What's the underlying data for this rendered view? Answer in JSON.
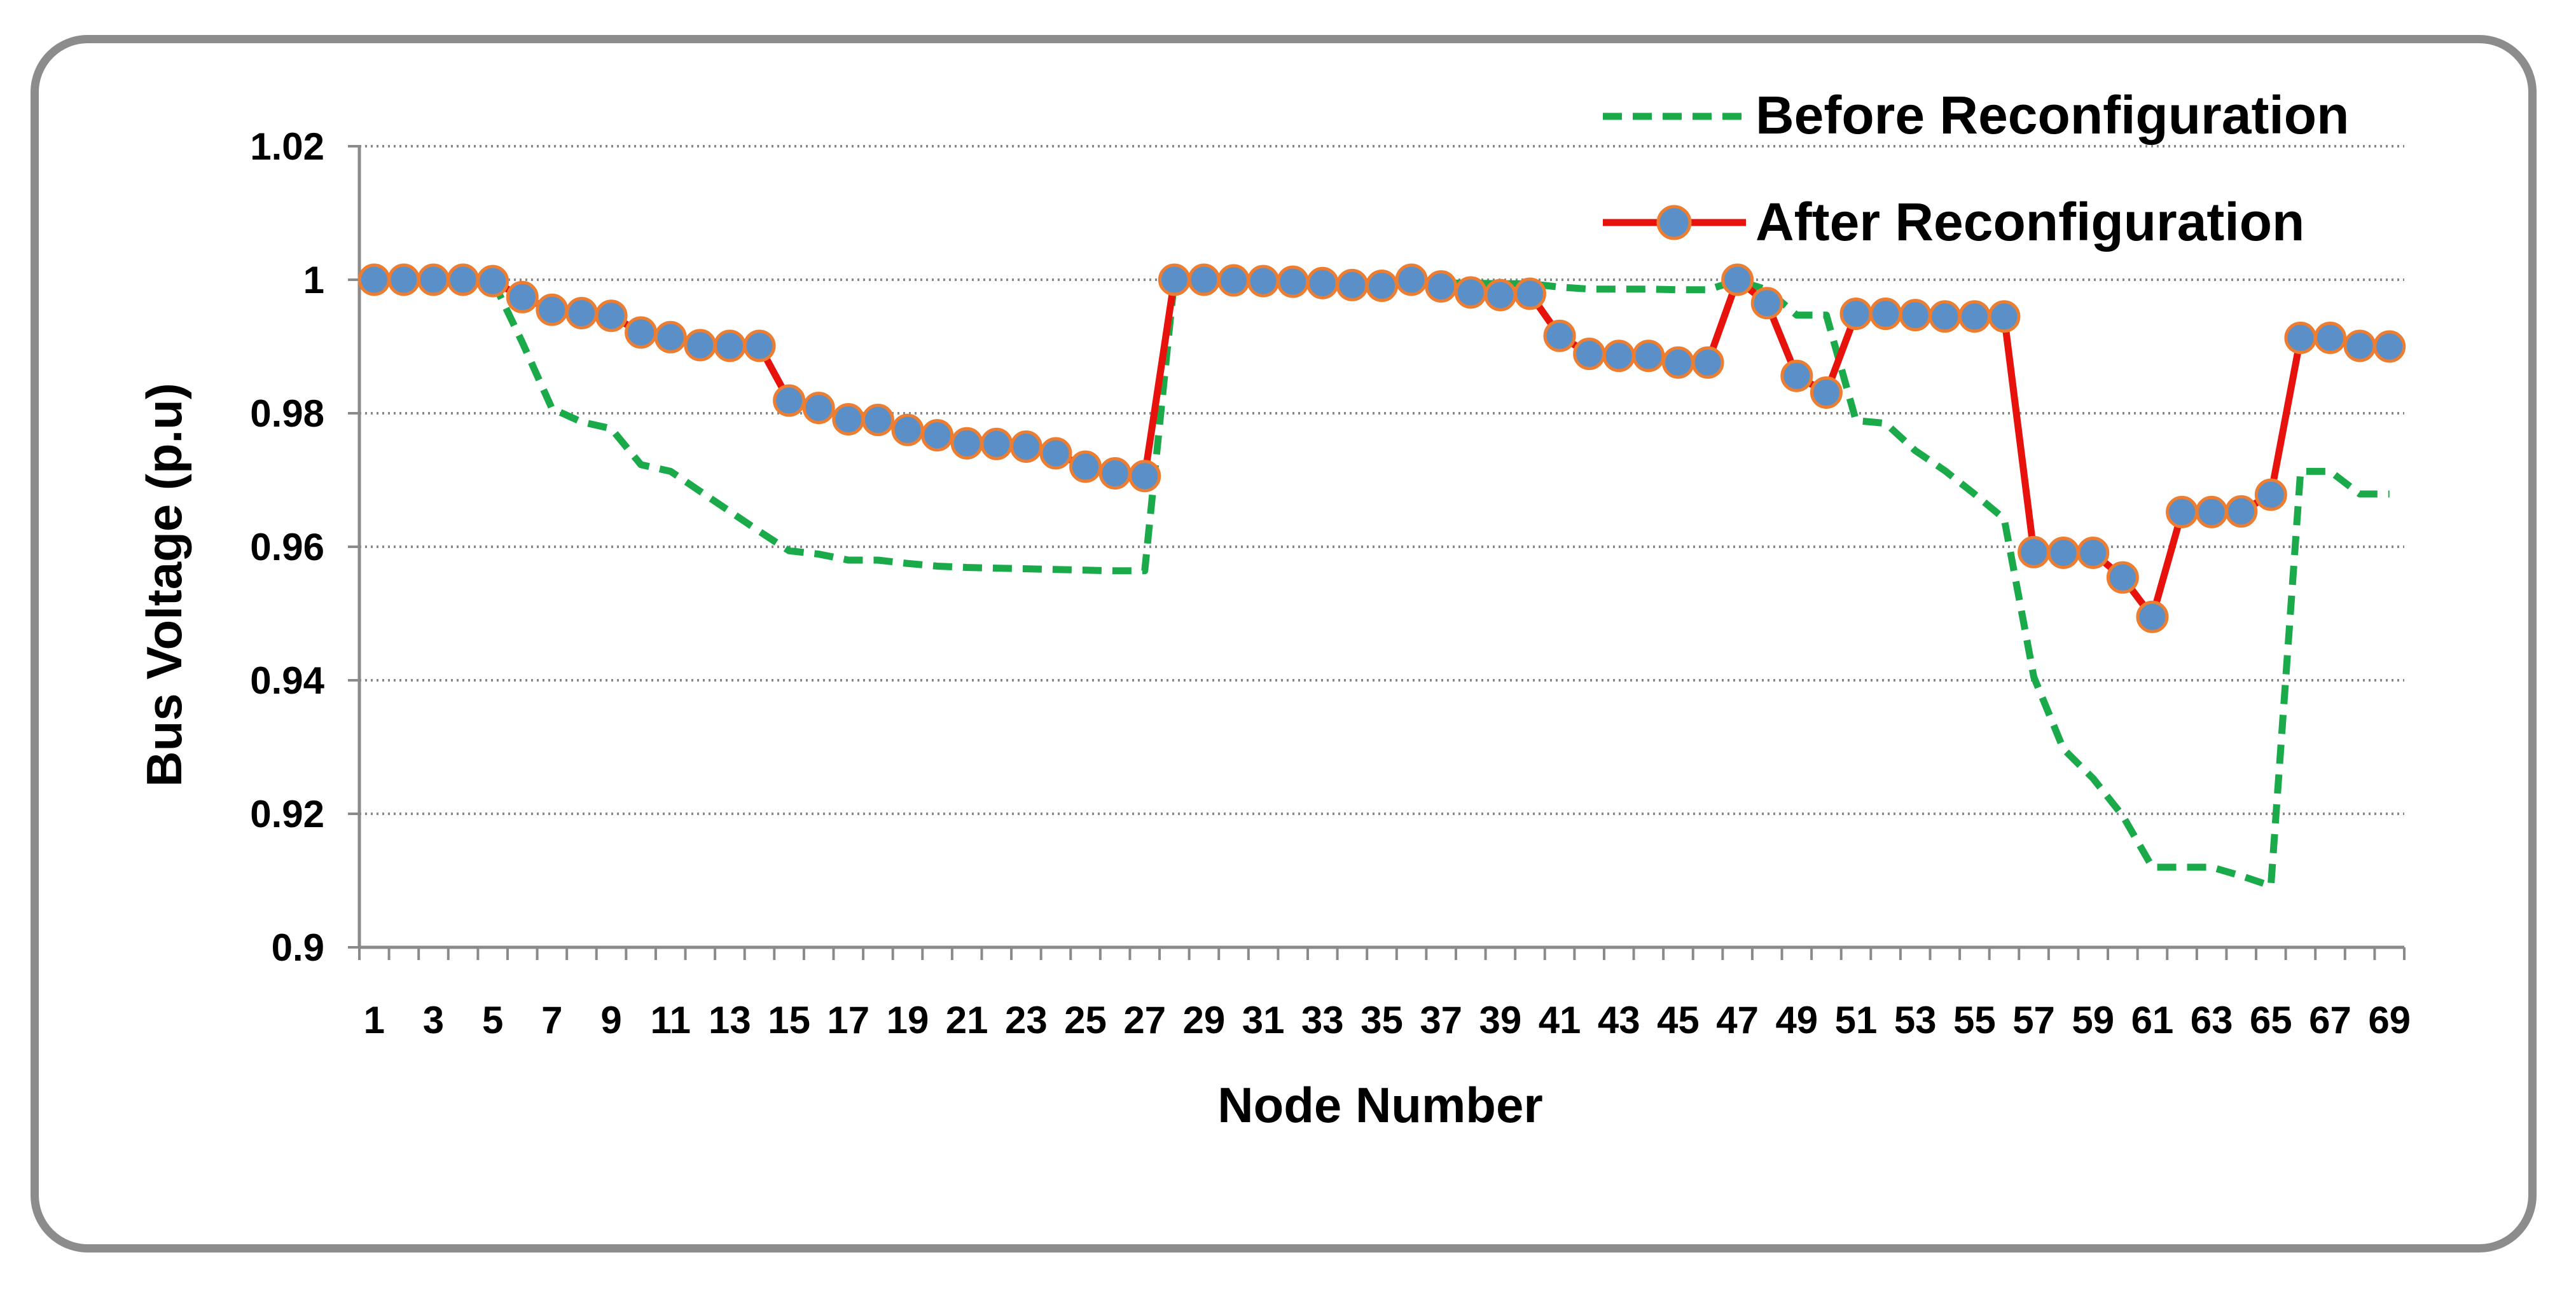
{
  "chart_data": {
    "type": "line",
    "title": "",
    "xlabel": "Node Number",
    "ylabel": "Bus Voltage (p.u)",
    "ylim": [
      0.9,
      1.02
    ],
    "yticks": [
      0.9,
      0.92,
      0.94,
      0.96,
      0.98,
      1,
      1.02
    ],
    "ytick_labels": [
      "0.9",
      "0.92",
      "0.94",
      "0.96",
      "0.98",
      "1",
      "1.02"
    ],
    "x_categories": [
      1,
      2,
      3,
      4,
      5,
      6,
      7,
      8,
      9,
      10,
      11,
      12,
      13,
      14,
      15,
      16,
      17,
      18,
      19,
      20,
      21,
      22,
      23,
      24,
      25,
      26,
      27,
      28,
      29,
      30,
      31,
      32,
      33,
      34,
      35,
      36,
      37,
      38,
      39,
      40,
      41,
      42,
      43,
      44,
      45,
      46,
      47,
      48,
      49,
      50,
      51,
      52,
      53,
      54,
      55,
      56,
      57,
      58,
      59,
      60,
      61,
      62,
      63,
      64,
      65,
      66,
      67,
      68,
      69
    ],
    "xtick_labels": [
      "1",
      "3",
      "5",
      "7",
      "9",
      "11",
      "13",
      "15",
      "17",
      "19",
      "21",
      "23",
      "25",
      "27",
      "29",
      "31",
      "33",
      "35",
      "37",
      "39",
      "41",
      "43",
      "45",
      "47",
      "49",
      "51",
      "53",
      "55",
      "57",
      "59",
      "61",
      "63",
      "65",
      "67",
      "69"
    ],
    "grid": "horizontal dotted",
    "legend_position": "top-right",
    "series": [
      {
        "name": "Before Reconfiguration",
        "color": "#1aaa4a",
        "style": "dashed",
        "values": [
          1.0,
          1.0,
          1.0,
          1.0,
          0.9999,
          0.9906,
          0.9807,
          0.9787,
          0.9777,
          0.9723,
          0.9713,
          0.9683,
          0.9653,
          0.9623,
          0.9594,
          0.9589,
          0.958,
          0.958,
          0.9575,
          0.9571,
          0.9569,
          0.9568,
          0.9567,
          0.9566,
          0.9565,
          0.9564,
          0.9564,
          1.0,
          1.0,
          0.9999,
          0.9999,
          0.9999,
          0.9998,
          0.9997,
          0.9996,
          0.9995,
          0.9995,
          0.9995,
          0.9994,
          0.9994,
          0.9989,
          0.9986,
          0.9986,
          0.9986,
          0.9985,
          0.9985,
          0.9999,
          0.9985,
          0.9947,
          0.9947,
          0.9789,
          0.9785,
          0.9744,
          0.9714,
          0.9679,
          0.9642,
          0.9405,
          0.9297,
          0.9253,
          0.9197,
          0.912,
          0.912,
          0.912,
          0.9107,
          0.9092,
          0.9713,
          0.9713,
          0.9679,
          0.9679
        ]
      },
      {
        "name": "After Reconfiguration",
        "color": "#e8120c",
        "style": "solid-with-markers",
        "marker_color": "#5b8fc7",
        "marker_edge_color": "#ed7d31",
        "values": [
          1.0,
          1.0,
          1.0,
          1.0,
          0.9998,
          0.9974,
          0.9955,
          0.995,
          0.9946,
          0.9921,
          0.9914,
          0.9902,
          0.9901,
          0.9901,
          0.9819,
          0.9808,
          0.9791,
          0.979,
          0.9775,
          0.9767,
          0.9755,
          0.9754,
          0.975,
          0.974,
          0.972,
          0.971,
          0.9706,
          1.0,
          1.0,
          0.9999,
          0.9998,
          0.9997,
          0.9995,
          0.9992,
          0.9991,
          1.0,
          0.999,
          0.9981,
          0.9977,
          0.9979,
          0.9916,
          0.9889,
          0.9886,
          0.9886,
          0.9876,
          0.9876,
          1.0,
          0.9965,
          0.9856,
          0.9831,
          0.9949,
          0.9949,
          0.9947,
          0.9945,
          0.9945,
          0.9945,
          0.9592,
          0.9591,
          0.9591,
          0.9554,
          0.9495,
          0.9652,
          0.9652,
          0.9653,
          0.9678,
          0.9913,
          0.9913,
          0.9901,
          0.99
        ]
      }
    ]
  }
}
